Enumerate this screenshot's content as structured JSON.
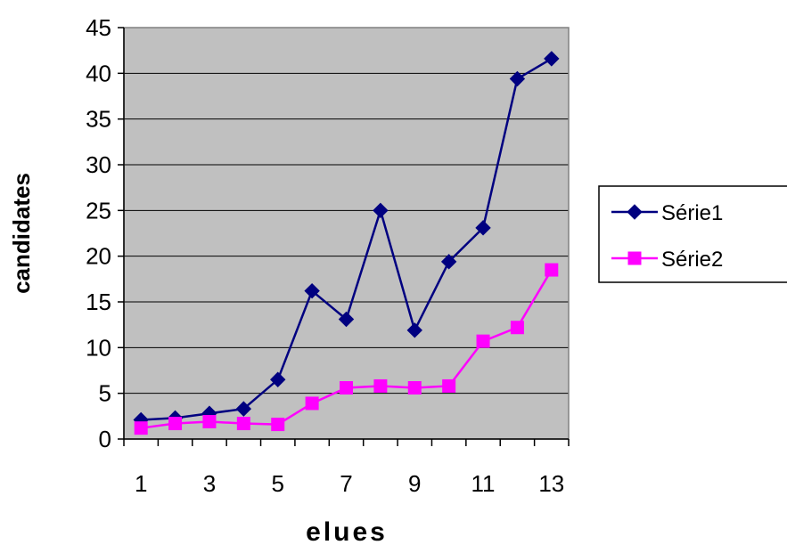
{
  "chart_data": {
    "type": "line",
    "title": "",
    "xlabel": "elues",
    "ylabel": "candidates",
    "x": [
      1,
      2,
      3,
      4,
      5,
      6,
      7,
      8,
      9,
      10,
      11,
      12,
      13
    ],
    "xtick_labels": [
      "1",
      "3",
      "5",
      "7",
      "9",
      "11",
      "13"
    ],
    "ylim": [
      0,
      45
    ],
    "ytick_labels": [
      "0",
      "5",
      "10",
      "15",
      "20",
      "25",
      "30",
      "35",
      "40",
      "45"
    ],
    "grid": "horizontal",
    "legend_position": "right",
    "series": [
      {
        "name": "Série1",
        "color": "#000080",
        "marker": "diamond",
        "values": [
          2.1,
          2.3,
          2.8,
          3.3,
          6.5,
          16.2,
          13.1,
          25.0,
          11.9,
          19.4,
          23.1,
          39.4,
          41.6
        ]
      },
      {
        "name": "Série2",
        "color": "#ff00ff",
        "marker": "square",
        "values": [
          1.2,
          1.7,
          1.9,
          1.7,
          1.6,
          3.9,
          5.6,
          5.8,
          5.6,
          5.8,
          10.7,
          12.2,
          18.5
        ]
      }
    ],
    "plot_background": "#c0c0c0"
  }
}
